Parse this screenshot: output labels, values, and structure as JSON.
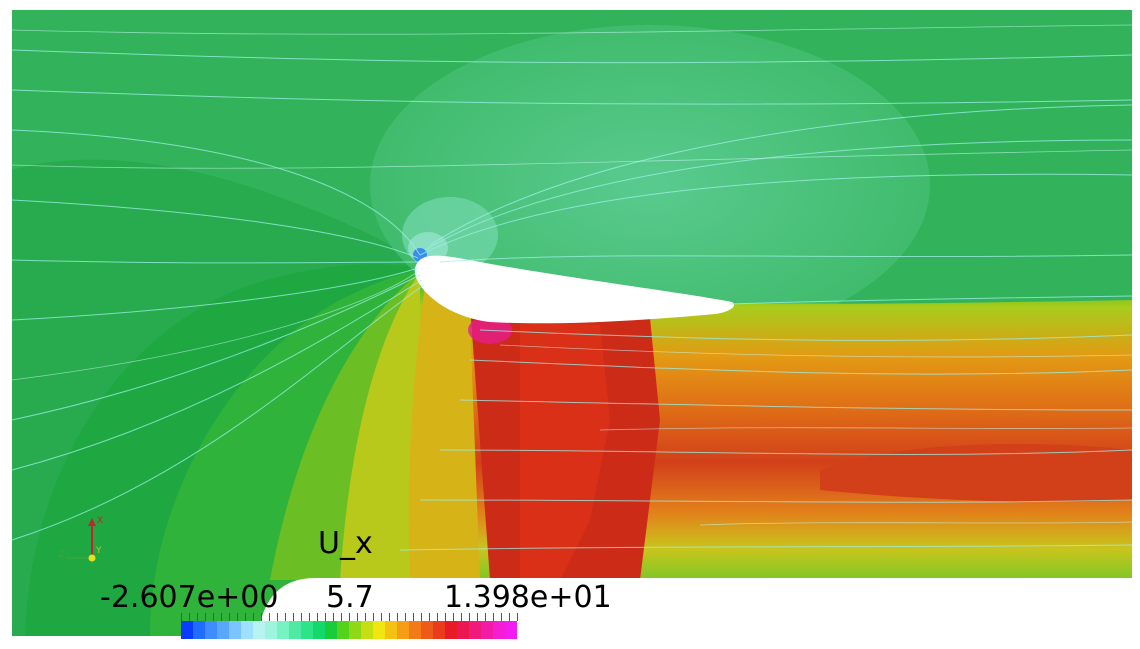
{
  "scalar_bar": {
    "title": "U_x",
    "min_label": "-2.607e+00",
    "mid_label": "5.7",
    "max_label": "1.398e+01",
    "colors": [
      "#0a3cff",
      "#1f6cff",
      "#3f8cff",
      "#5aa6ff",
      "#7cc4ff",
      "#9ee0ff",
      "#b7f3f0",
      "#9ff5dc",
      "#77f2c1",
      "#4fe9a4",
      "#2ee388",
      "#13d86a",
      "#18cc3c",
      "#55d21c",
      "#8ed816",
      "#c5df14",
      "#f2e612",
      "#f5c213",
      "#f59d16",
      "#f27a17",
      "#ee5a1a",
      "#ea3c1c",
      "#e81a25",
      "#ec1650",
      "#f01a7b",
      "#f41aa6",
      "#f61cd2",
      "#f21cf2"
    ]
  },
  "orientation_axes": {
    "x_label": "X",
    "y_label": "Y",
    "z_label": "Z",
    "x_color": "#c0262d",
    "y_color": "#e8e020",
    "z_color": "#3aa63a"
  },
  "scene_colors": {
    "background": "#32b35b",
    "upstream": "#26a84a",
    "foil": "#ffffff",
    "wake_dark": "#d12a1a",
    "wake_mid": "#e05a15",
    "wake_orange": "#e79a14",
    "wake_yellow": "#d8c419",
    "suction_halo": "#49c17a"
  }
}
